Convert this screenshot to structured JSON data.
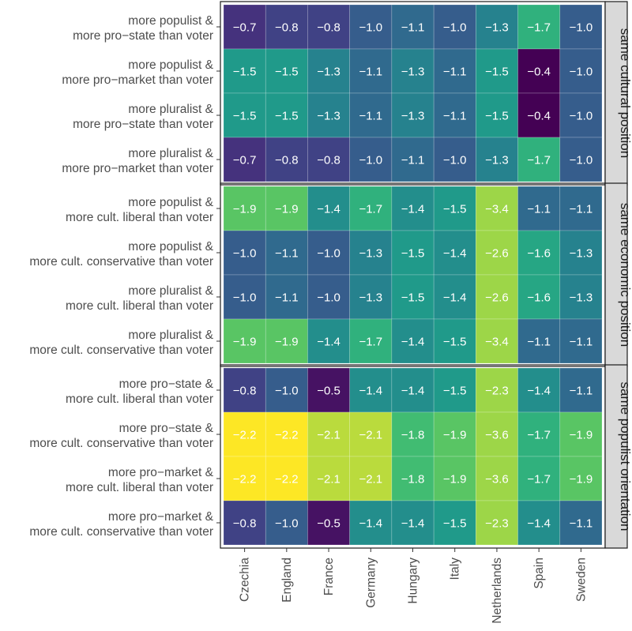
{
  "chart_data": {
    "type": "heatmap",
    "columns": [
      "Czechia",
      "England",
      "France",
      "Germany",
      "Hungary",
      "Italy",
      "Netherlands",
      "Spain",
      "Sweden"
    ],
    "color_scale": "viridis",
    "panels": [
      {
        "strip": "same cultural position",
        "rows": [
          {
            "line1": "more populist &",
            "line2": "more pro−state than voter",
            "values": [
              -0.7,
              -0.8,
              -0.8,
              -1.0,
              -1.1,
              -1.0,
              -1.3,
              -1.7,
              -1.0
            ]
          },
          {
            "line1": "more populist &",
            "line2": "more pro−market than voter",
            "values": [
              -1.5,
              -1.5,
              -1.3,
              -1.1,
              -1.3,
              -1.1,
              -1.5,
              -0.4,
              -1.0
            ]
          },
          {
            "line1": "more pluralist &",
            "line2": "more pro−state than voter",
            "values": [
              -1.5,
              -1.5,
              -1.3,
              -1.1,
              -1.3,
              -1.1,
              -1.5,
              -0.4,
              -1.0
            ]
          },
          {
            "line1": "more pluralist &",
            "line2": "more pro−market than voter",
            "values": [
              -0.7,
              -0.8,
              -0.8,
              -1.0,
              -1.1,
              -1.0,
              -1.3,
              -1.7,
              -1.0
            ]
          }
        ]
      },
      {
        "strip": "same economic position",
        "rows": [
          {
            "line1": "more populist &",
            "line2": "more cult. liberal than voter",
            "values": [
              -1.9,
              -1.9,
              -1.4,
              -1.7,
              -1.4,
              -1.5,
              -3.4,
              -1.1,
              -1.1
            ]
          },
          {
            "line1": "more populist &",
            "line2": "more cult. conservative than voter",
            "values": [
              -1.0,
              -1.1,
              -1.0,
              -1.3,
              -1.5,
              -1.4,
              -2.6,
              -1.6,
              -1.3
            ]
          },
          {
            "line1": "more pluralist &",
            "line2": "more cult. liberal than voter",
            "values": [
              -1.0,
              -1.1,
              -1.0,
              -1.3,
              -1.5,
              -1.4,
              -2.6,
              -1.6,
              -1.3
            ]
          },
          {
            "line1": "more pluralist &",
            "line2": "more cult. conservative than voter",
            "values": [
              -1.9,
              -1.9,
              -1.4,
              -1.7,
              -1.4,
              -1.5,
              -3.4,
              -1.1,
              -1.1
            ]
          }
        ]
      },
      {
        "strip": "same populist orientation",
        "rows": [
          {
            "line1": "more pro−state &",
            "line2": "more cult. liberal than voter",
            "values": [
              -0.8,
              -1.0,
              -0.5,
              -1.4,
              -1.4,
              -1.5,
              -2.3,
              -1.4,
              -1.1
            ]
          },
          {
            "line1": "more pro−state &",
            "line2": "more cult. conservative than voter",
            "values": [
              -2.2,
              -2.2,
              -2.1,
              -2.1,
              -1.8,
              -1.9,
              -3.6,
              -1.7,
              -1.9
            ]
          },
          {
            "line1": "more pro−market &",
            "line2": "more cult. liberal than voter",
            "values": [
              -2.2,
              -2.2,
              -2.1,
              -2.1,
              -1.8,
              -1.9,
              -3.6,
              -1.7,
              -1.9
            ]
          },
          {
            "line1": "more pro−market &",
            "line2": "more cult. conservative than voter",
            "values": [
              -0.8,
              -1.0,
              -0.5,
              -1.4,
              -1.4,
              -1.5,
              -2.3,
              -1.4,
              -1.1
            ]
          }
        ]
      }
    ]
  }
}
